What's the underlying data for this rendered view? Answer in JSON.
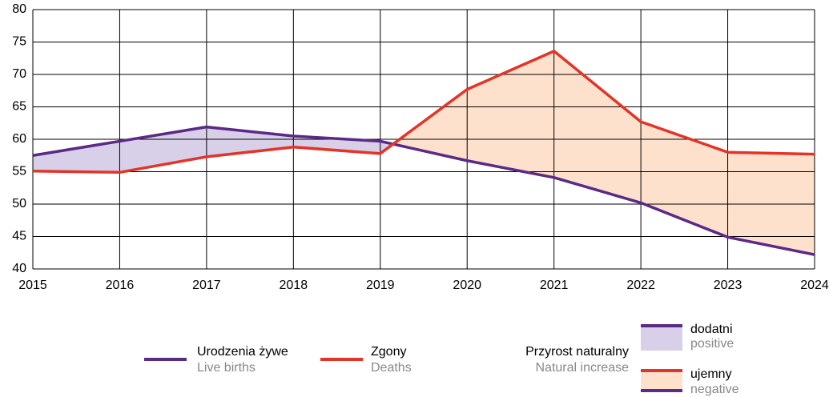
{
  "chart_data": {
    "type": "line",
    "x": [
      2015,
      2016,
      2017,
      2018,
      2019,
      2020,
      2021,
      2022,
      2023,
      2024
    ],
    "series": [
      {
        "name": "Urodzenia żywe",
        "name_en": "Live births",
        "color": "#5b2a86",
        "values": [
          57.5,
          59.7,
          61.9,
          60.5,
          59.7,
          56.7,
          54.1,
          50.2,
          44.9,
          42.2
        ]
      },
      {
        "name": "Zgony",
        "name_en": "Deaths",
        "color": "#e3342a",
        "values": [
          55.1,
          54.9,
          57.3,
          58.8,
          57.8,
          67.7,
          73.6,
          62.7,
          58.0,
          57.7
        ]
      }
    ],
    "xlim": [
      2015,
      2024
    ],
    "xticks": [
      2015,
      2016,
      2017,
      2018,
      2019,
      2020,
      2021,
      2022,
      2023,
      2024
    ],
    "ylim": [
      40,
      80
    ],
    "yticks": [
      40,
      45,
      50,
      55,
      60,
      65,
      70,
      75,
      80
    ],
    "grid": true,
    "fill_legend": {
      "title": "Przyrost naturalny",
      "title_en": "Natural increase",
      "positive": "dodatni",
      "positive_en": "positive",
      "positive_color": "#d8cfe8",
      "negative": "ujemny",
      "negative_en": "negative",
      "negative_color": "#fde1cc"
    }
  }
}
